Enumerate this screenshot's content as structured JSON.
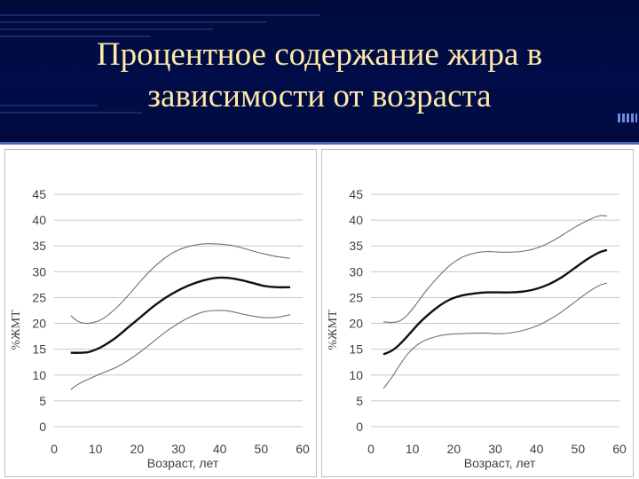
{
  "slide": {
    "title_line1": "Процентное содержание жира в",
    "title_line2": "зависимости от возраста",
    "background_color": "#000d4a",
    "title_color": "#ffe9a6"
  },
  "chart_data": [
    {
      "type": "line",
      "title": "",
      "xlabel": "Возраст, лет",
      "ylabel": "%ЖМТ",
      "xlim": [
        0,
        60
      ],
      "ylim": [
        0,
        45
      ],
      "xticks": [
        0,
        10,
        20,
        30,
        40,
        50,
        60
      ],
      "yticks": [
        0,
        5,
        10,
        15,
        20,
        25,
        30,
        35,
        40,
        45
      ],
      "grid": "horizontal",
      "series": [
        {
          "role": "upper",
          "line_weight": "thin",
          "x": [
            4,
            6,
            8,
            10,
            12,
            15,
            18,
            21,
            24,
            27,
            30,
            33,
            36,
            39,
            42,
            45,
            48,
            51,
            54,
            57
          ],
          "y": [
            21.5,
            20.3,
            20,
            20.3,
            21,
            23,
            25.5,
            28.3,
            30.8,
            32.8,
            34.2,
            35,
            35.4,
            35.4,
            35.2,
            34.7,
            34,
            33.4,
            32.9,
            32.6
          ]
        },
        {
          "role": "mean",
          "line_weight": "thick",
          "x": [
            4,
            6,
            8,
            10,
            12,
            15,
            18,
            21,
            24,
            27,
            30,
            33,
            36,
            39,
            42,
            45,
            48,
            51,
            54,
            57
          ],
          "y": [
            14.3,
            14.3,
            14.4,
            14.9,
            15.7,
            17.3,
            19.3,
            21.3,
            23.3,
            25,
            26.4,
            27.5,
            28.3,
            28.8,
            28.8,
            28.4,
            27.8,
            27.2,
            27,
            27
          ]
        },
        {
          "role": "lower",
          "line_weight": "thin",
          "x": [
            4,
            6,
            8,
            10,
            12,
            15,
            18,
            21,
            24,
            27,
            30,
            33,
            36,
            39,
            42,
            45,
            48,
            51,
            54,
            57
          ],
          "y": [
            7.2,
            8.3,
            9.1,
            9.8,
            10.5,
            11.5,
            12.9,
            14.6,
            16.5,
            18.4,
            20,
            21.3,
            22.2,
            22.5,
            22.4,
            21.9,
            21.4,
            21.1,
            21.2,
            21.7
          ]
        }
      ]
    },
    {
      "type": "line",
      "title": "",
      "xlabel": "Возраст, лет",
      "ylabel": "%ЖМТ",
      "xlim": [
        0,
        60
      ],
      "ylim": [
        0,
        45
      ],
      "xticks": [
        0,
        10,
        20,
        30,
        40,
        50,
        60
      ],
      "yticks": [
        0,
        5,
        10,
        15,
        20,
        25,
        30,
        35,
        40,
        45
      ],
      "grid": "horizontal",
      "series": [
        {
          "role": "upper",
          "line_weight": "thin",
          "x": [
            3,
            5,
            7,
            9,
            11,
            13,
            16,
            19,
            22,
            25,
            28,
            31,
            34,
            37,
            40,
            43,
            46,
            49,
            52,
            55,
            57
          ],
          "y": [
            20.3,
            20.2,
            20.5,
            21.8,
            23.8,
            26,
            28.8,
            31.2,
            32.8,
            33.6,
            33.9,
            33.8,
            33.8,
            34,
            34.6,
            35.6,
            37,
            38.5,
            39.8,
            40.8,
            40.8
          ]
        },
        {
          "role": "mean",
          "line_weight": "thick",
          "x": [
            3,
            5,
            7,
            9,
            11,
            13,
            16,
            19,
            22,
            25,
            28,
            31,
            34,
            37,
            40,
            43,
            46,
            49,
            52,
            55,
            57
          ],
          "y": [
            14,
            14.7,
            16,
            17.7,
            19.5,
            21.1,
            23.1,
            24.6,
            25.4,
            25.8,
            26,
            26,
            26,
            26.2,
            26.7,
            27.6,
            28.9,
            30.6,
            32.3,
            33.7,
            34.2
          ]
        },
        {
          "role": "lower",
          "line_weight": "thin",
          "x": [
            3,
            5,
            7,
            9,
            11,
            13,
            16,
            19,
            22,
            25,
            28,
            31,
            34,
            37,
            40,
            43,
            46,
            49,
            52,
            55,
            57
          ],
          "y": [
            7.4,
            9.5,
            12,
            14.2,
            15.7,
            16.7,
            17.5,
            17.9,
            18,
            18.1,
            18.1,
            18,
            18.2,
            18.7,
            19.5,
            20.7,
            22.2,
            24,
            25.8,
            27.3,
            27.8
          ]
        }
      ]
    }
  ]
}
